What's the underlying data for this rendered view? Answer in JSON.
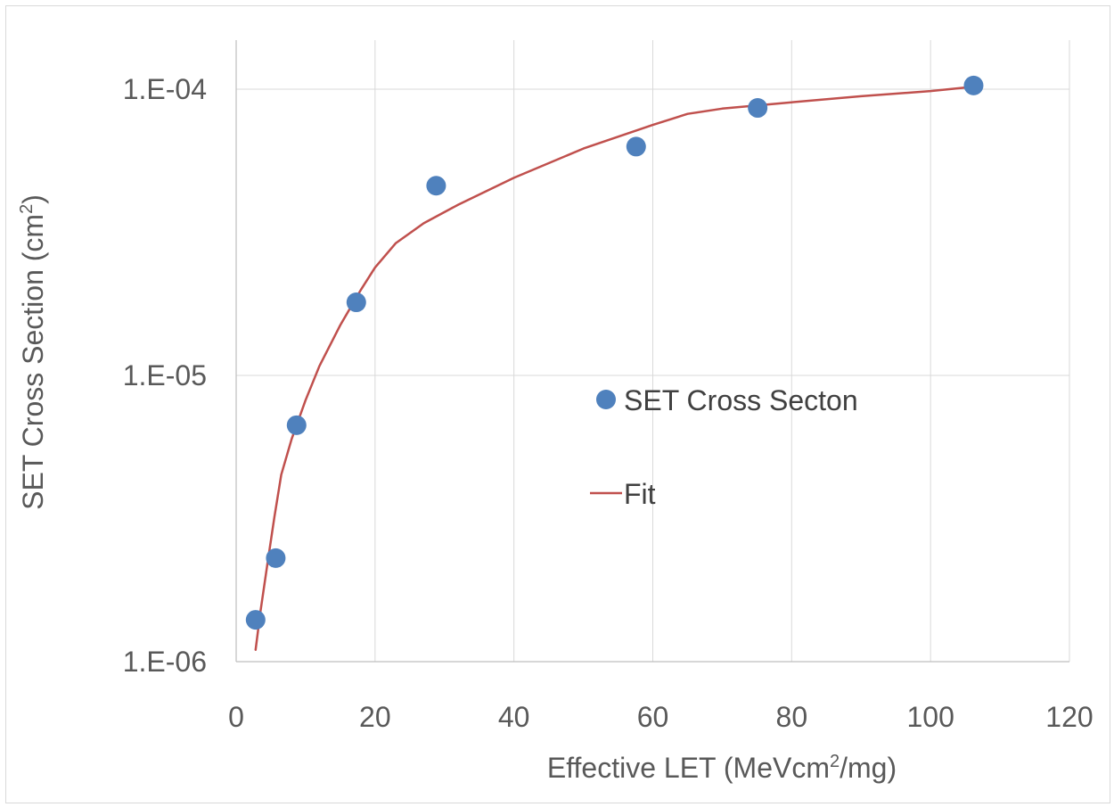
{
  "chart_data": {
    "type": "scatter",
    "xlabel": {
      "prefix": "Effective LET (MeVcm",
      "sup": "2",
      "suffix": "/mg)"
    },
    "ylabel": {
      "prefix": "SET Cross Section (cm",
      "sup": "2",
      "suffix": ")"
    },
    "xlim": [
      0,
      120
    ],
    "ylim": [
      1e-06,
      0.0001
    ],
    "yscale": "log",
    "x_ticks": [
      0,
      20,
      40,
      60,
      80,
      100,
      120
    ],
    "x_tick_labels": [
      "0",
      "20",
      "40",
      "60",
      "80",
      "100",
      "120"
    ],
    "y_ticks": [
      1e-06,
      1e-05,
      0.0001
    ],
    "y_tick_labels": [
      "1.E-06",
      "1.E-05",
      "1.E-04"
    ],
    "grid": true,
    "legend_position": "center-right",
    "series": [
      {
        "name": "SET Cross Secton",
        "kind": "markers",
        "color": "#4f81bd",
        "points": [
          [
            2.8,
            1.4e-06
          ],
          [
            5.7,
            2.3e-06
          ],
          [
            8.7,
            6.7e-06
          ],
          [
            17.3,
            1.8e-05
          ],
          [
            28.8,
            4.6e-05
          ],
          [
            57.6,
            6.3e-05
          ],
          [
            75.1,
            8.6e-05
          ],
          [
            106.2,
            0.000103
          ]
        ]
      },
      {
        "name": "Fit",
        "kind": "line",
        "color": "#c0504d",
        "points": [
          [
            2.8,
            1.1e-06
          ],
          [
            3.5,
            1.5e-06
          ],
          [
            4.5,
            2.2e-06
          ],
          [
            5.5,
            3.2e-06
          ],
          [
            6.5,
            4.5e-06
          ],
          [
            8,
            6e-06
          ],
          [
            10,
            8.2e-06
          ],
          [
            12,
            1.08e-05
          ],
          [
            15,
            1.5e-05
          ],
          [
            18,
            2e-05
          ],
          [
            20,
            2.38e-05
          ],
          [
            23,
            2.9e-05
          ],
          [
            27,
            3.4e-05
          ],
          [
            32,
            3.95e-05
          ],
          [
            40,
            4.9e-05
          ],
          [
            50,
            6.2e-05
          ],
          [
            60,
            7.5e-05
          ],
          [
            65,
            8.2e-05
          ],
          [
            70,
            8.55e-05
          ],
          [
            80,
            9e-05
          ],
          [
            90,
            9.45e-05
          ],
          [
            100,
            9.85e-05
          ],
          [
            106.2,
            0.000102
          ]
        ]
      }
    ]
  }
}
